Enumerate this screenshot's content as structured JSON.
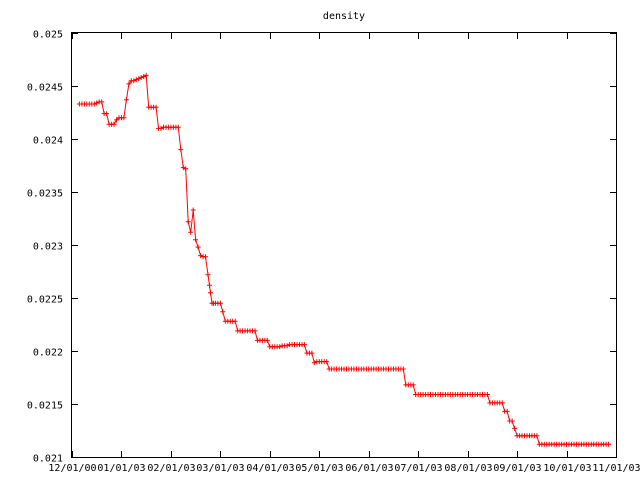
{
  "chart_data": {
    "type": "line",
    "title": "density",
    "xlabel": "",
    "ylabel": "",
    "grid": false,
    "legend": "none",
    "colors": {
      "series": "#ff0000",
      "axes": "#000000",
      "background": "#ffffff"
    },
    "x_ticks": [
      "12/01/00",
      "01/01/03",
      "02/01/03",
      "03/01/03",
      "04/01/03",
      "05/01/03",
      "06/01/03",
      "07/01/03",
      "08/01/03",
      "09/01/03",
      "10/01/03",
      "11/01/03"
    ],
    "xlim": [
      0,
      11
    ],
    "ylim": [
      0.021,
      0.025
    ],
    "y_ticks": [
      "0.021",
      "0.0215",
      "0.022",
      "0.0225",
      "0.023",
      "0.0235",
      "0.024",
      "0.0245",
      "0.025"
    ],
    "series": [
      {
        "marker": "plus",
        "x": [
          0.15,
          0.2,
          0.25,
          0.3,
          0.35,
          0.4,
          0.45,
          0.5,
          0.55,
          0.6,
          0.65,
          0.7,
          0.75,
          0.8,
          0.85,
          0.9,
          0.95,
          1.0,
          1.05,
          1.1,
          1.15,
          1.2,
          1.25,
          1.3,
          1.35,
          1.4,
          1.45,
          1.5,
          1.55,
          1.6,
          1.65,
          1.7,
          1.75,
          1.8,
          1.85,
          1.9,
          1.95,
          2.0,
          2.05,
          2.1,
          2.15,
          2.2,
          2.25,
          2.3,
          2.35,
          2.4,
          2.45,
          2.5,
          2.55,
          2.6,
          2.65,
          2.7,
          2.75,
          2.78,
          2.8,
          2.83,
          2.86,
          2.9,
          2.95,
          3.0,
          3.05,
          3.1,
          3.15,
          3.2,
          3.25,
          3.3,
          3.35,
          3.4,
          3.45,
          3.5,
          3.55,
          3.6,
          3.65,
          3.7,
          3.75,
          3.8,
          3.85,
          3.9,
          3.95,
          4.0,
          4.05,
          4.1,
          4.15,
          4.2,
          4.25,
          4.3,
          4.35,
          4.4,
          4.45,
          4.5,
          4.55,
          4.6,
          4.65,
          4.7,
          4.75,
          4.8,
          4.85,
          4.9,
          4.95,
          5.0,
          5.05,
          5.1,
          5.15,
          5.2,
          5.25,
          5.3,
          5.35,
          5.4,
          5.45,
          5.5,
          5.55,
          5.6,
          5.65,
          5.7,
          5.75,
          5.8,
          5.85,
          5.9,
          5.95,
          6.0,
          6.05,
          6.1,
          6.15,
          6.2,
          6.25,
          6.3,
          6.35,
          6.4,
          6.45,
          6.5,
          6.55,
          6.6,
          6.65,
          6.7,
          6.75,
          6.8,
          6.85,
          6.9,
          6.95,
          7.0,
          7.05,
          7.1,
          7.15,
          7.2,
          7.25,
          7.3,
          7.35,
          7.4,
          7.45,
          7.5,
          7.55,
          7.6,
          7.65,
          7.7,
          7.75,
          7.8,
          7.85,
          7.9,
          7.95,
          8.0,
          8.05,
          8.1,
          8.15,
          8.2,
          8.25,
          8.3,
          8.35,
          8.4,
          8.45,
          8.5,
          8.55,
          8.6,
          8.65,
          8.7,
          8.75,
          8.8,
          8.85,
          8.9,
          8.95,
          9.0,
          9.05,
          9.1,
          9.15,
          9.2,
          9.25,
          9.3,
          9.35,
          9.4,
          9.45,
          9.5,
          9.55,
          9.6,
          9.65,
          9.7,
          9.75,
          9.8,
          9.85,
          9.9,
          9.95,
          10.0,
          10.05,
          10.1,
          10.15,
          10.2,
          10.25,
          10.3,
          10.35,
          10.4,
          10.45,
          10.5,
          10.55,
          10.6,
          10.65,
          10.7,
          10.75,
          10.8,
          10.85
        ],
        "y": [
          0.02433,
          0.02433,
          0.02433,
          0.02433,
          0.02433,
          0.02433,
          0.02433,
          0.02434,
          0.02435,
          0.02435,
          0.02424,
          0.02424,
          0.02414,
          0.02414,
          0.02414,
          0.02418,
          0.0242,
          0.0242,
          0.0242,
          0.02437,
          0.02452,
          0.02455,
          0.02455,
          0.02456,
          0.02457,
          0.02458,
          0.02459,
          0.0246,
          0.0243,
          0.0243,
          0.0243,
          0.0243,
          0.0241,
          0.0241,
          0.02411,
          0.02411,
          0.02411,
          0.02411,
          0.02411,
          0.02411,
          0.02411,
          0.0239,
          0.02373,
          0.02372,
          0.02322,
          0.02312,
          0.02333,
          0.02305,
          0.02298,
          0.0229,
          0.02289,
          0.02289,
          0.02272,
          0.02262,
          0.02255,
          0.02245,
          0.02245,
          0.02245,
          0.02245,
          0.02245,
          0.02237,
          0.02228,
          0.02228,
          0.02228,
          0.02228,
          0.02228,
          0.02219,
          0.02219,
          0.02219,
          0.02219,
          0.02219,
          0.02219,
          0.02219,
          0.02219,
          0.0221,
          0.0221,
          0.0221,
          0.0221,
          0.0221,
          0.02204,
          0.02204,
          0.02204,
          0.02204,
          0.02204,
          0.02205,
          0.02205,
          0.02205,
          0.02206,
          0.02206,
          0.02206,
          0.02206,
          0.02206,
          0.02206,
          0.02206,
          0.02198,
          0.02198,
          0.02198,
          0.02189,
          0.0219,
          0.0219,
          0.0219,
          0.0219,
          0.0219,
          0.02183,
          0.02183,
          0.02183,
          0.02183,
          0.02183,
          0.02183,
          0.02183,
          0.02183,
          0.02183,
          0.02183,
          0.02183,
          0.02183,
          0.02183,
          0.02183,
          0.02183,
          0.02183,
          0.02183,
          0.02183,
          0.02183,
          0.02183,
          0.02183,
          0.02183,
          0.02183,
          0.02183,
          0.02183,
          0.02183,
          0.02183,
          0.02183,
          0.02183,
          0.02183,
          0.02183,
          0.02168,
          0.02168,
          0.02168,
          0.02168,
          0.02159,
          0.02159,
          0.02159,
          0.02159,
          0.02159,
          0.02159,
          0.02159,
          0.02159,
          0.02159,
          0.02159,
          0.02159,
          0.02159,
          0.02159,
          0.02159,
          0.02159,
          0.02159,
          0.02159,
          0.02159,
          0.02159,
          0.02159,
          0.02159,
          0.02159,
          0.02159,
          0.02159,
          0.02159,
          0.02159,
          0.02159,
          0.02159,
          0.02159,
          0.02159,
          0.02151,
          0.02151,
          0.02151,
          0.02151,
          0.02151,
          0.02151,
          0.02143,
          0.02143,
          0.02134,
          0.02134,
          0.02127,
          0.0212,
          0.0212,
          0.0212,
          0.0212,
          0.0212,
          0.0212,
          0.0212,
          0.0212,
          0.0212,
          0.02112,
          0.02112,
          0.02112,
          0.02112,
          0.02112,
          0.02112,
          0.02112,
          0.02112,
          0.02112,
          0.02112,
          0.02112,
          0.02112,
          0.02112,
          0.02112,
          0.02112,
          0.02112,
          0.02112,
          0.02112,
          0.02112,
          0.02112,
          0.02112,
          0.02112,
          0.02112,
          0.02112,
          0.02112,
          0.02112,
          0.02112,
          0.02112,
          0.02112
        ]
      }
    ]
  }
}
